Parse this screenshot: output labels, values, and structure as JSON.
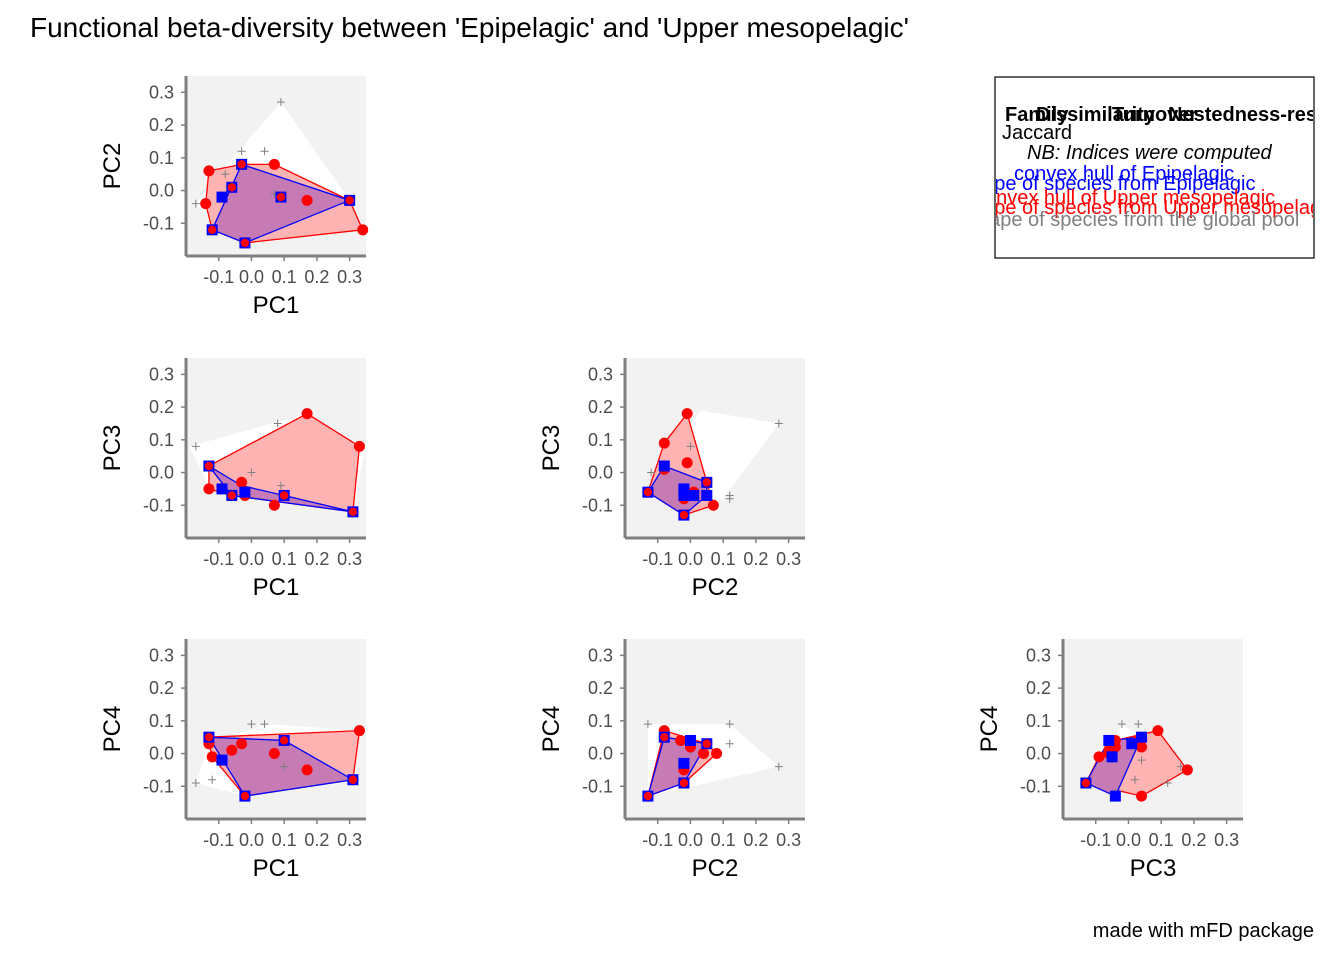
{
  "title": "Functional beta-diversity between 'Epipelagic' and 'Upper mesopelagic'",
  "caption": "made with mFD package",
  "colors": {
    "panel_bg": "#f2f2f2",
    "pool_hull": "#ffffff",
    "pool_points": "#808080",
    "epi": "#0000ff",
    "meso": "#ff0000",
    "meso_fill": "#ffb3b3",
    "overlap_fill": "#c67bb5",
    "axis": "#7f7f7f"
  },
  "legend": {
    "header": [
      "Family",
      "Dissimilarity",
      "Turnover",
      "Nestedness-resultant"
    ],
    "family": "Jaccard",
    "note": "NB: Indices were computed",
    "epi_hull": "convex hull of Epipelagic",
    "epi_species": "shape of species from Epipelagic",
    "meso_hull": "convex hull of Upper mesopelagic",
    "meso_species": "shape of species from Upper mesopelagic",
    "pool_species": "shape of species from the global pool"
  },
  "chart_data": {
    "type": "scatter",
    "axis_range": [
      -0.2,
      0.35
    ],
    "ticks": [
      -0.1,
      0.0,
      0.1,
      0.2,
      0.3
    ],
    "tick_labels": [
      "-0.1",
      "0.0",
      "0.1",
      "0.2",
      "0.3"
    ],
    "x_tick_labels": [
      "-0.1",
      "0.0",
      "0.1",
      "0.2",
      "0.3"
    ],
    "grid": false,
    "panels": [
      {
        "xlabel": "PC1",
        "ylabel": "PC2",
        "pool_hull": [
          [
            -0.17,
            -0.04
          ],
          [
            -0.1,
            -0.12
          ],
          [
            -0.02,
            -0.16
          ],
          [
            0.3,
            -0.03
          ],
          [
            0.09,
            0.27
          ],
          [
            -0.04,
            0.12
          ]
        ],
        "pool_points": [
          [
            0.09,
            0.27
          ],
          [
            -0.03,
            0.12
          ],
          [
            0.04,
            0.12
          ],
          [
            -0.17,
            -0.04
          ],
          [
            -0.08,
            0.05
          ],
          [
            0.07,
            -0.01
          ]
        ],
        "meso_hull": [
          [
            -0.13,
            0.06
          ],
          [
            -0.14,
            -0.04
          ],
          [
            -0.12,
            -0.12
          ],
          [
            -0.02,
            -0.16
          ],
          [
            0.34,
            -0.12
          ],
          [
            0.3,
            -0.03
          ],
          [
            0.07,
            0.08
          ],
          [
            -0.03,
            0.08
          ]
        ],
        "meso_points": [
          [
            -0.13,
            0.06
          ],
          [
            -0.14,
            -0.04
          ],
          [
            -0.12,
            -0.12
          ],
          [
            -0.02,
            -0.16
          ],
          [
            0.34,
            -0.12
          ],
          [
            0.3,
            -0.03
          ],
          [
            0.07,
            0.08
          ],
          [
            -0.03,
            0.08
          ],
          [
            0.17,
            -0.03
          ],
          [
            0.09,
            -0.02
          ],
          [
            -0.06,
            0.01
          ]
        ],
        "epi_hull": [
          [
            -0.12,
            -0.12
          ],
          [
            -0.03,
            0.08
          ],
          [
            0.3,
            -0.03
          ],
          [
            -0.02,
            -0.16
          ]
        ],
        "epi_points": [
          [
            -0.12,
            -0.12
          ],
          [
            -0.03,
            0.08
          ],
          [
            0.3,
            -0.03
          ],
          [
            -0.02,
            -0.16
          ],
          [
            -0.09,
            -0.02
          ],
          [
            0.09,
            -0.02
          ],
          [
            -0.06,
            0.01
          ]
        ]
      },
      {
        "xlabel": "PC1",
        "ylabel": "PC3",
        "pool_hull": [
          [
            -0.19,
            0.08
          ],
          [
            -0.13,
            -0.04
          ],
          [
            0.31,
            -0.12
          ],
          [
            0.35,
            0.08
          ],
          [
            0.17,
            0.18
          ]
        ],
        "pool_points": [
          [
            -0.17,
            0.08
          ],
          [
            0.08,
            0.15
          ],
          [
            0.0,
            0.0
          ],
          [
            0.09,
            -0.04
          ]
        ],
        "meso_hull": [
          [
            -0.13,
            0.02
          ],
          [
            -0.13,
            -0.05
          ],
          [
            -0.06,
            -0.07
          ],
          [
            0.31,
            -0.12
          ],
          [
            0.33,
            0.08
          ],
          [
            0.17,
            0.18
          ]
        ],
        "meso_points": [
          [
            -0.13,
            0.02
          ],
          [
            -0.13,
            -0.05
          ],
          [
            -0.06,
            -0.07
          ],
          [
            0.31,
            -0.12
          ],
          [
            0.33,
            0.08
          ],
          [
            0.17,
            0.18
          ],
          [
            -0.03,
            -0.03
          ],
          [
            -0.02,
            -0.07
          ],
          [
            0.07,
            -0.1
          ],
          [
            0.1,
            -0.07
          ]
        ],
        "epi_hull": [
          [
            -0.13,
            0.02
          ],
          [
            -0.06,
            -0.07
          ],
          [
            0.31,
            -0.12
          ],
          [
            0.1,
            -0.07
          ],
          [
            -0.03,
            -0.04
          ]
        ],
        "epi_points": [
          [
            -0.13,
            0.02
          ],
          [
            -0.06,
            -0.07
          ],
          [
            0.31,
            -0.12
          ],
          [
            0.1,
            -0.07
          ],
          [
            -0.09,
            -0.05
          ],
          [
            -0.02,
            -0.06
          ]
        ]
      },
      {
        "xlabel": "PC2",
        "ylabel": "PC3",
        "pool_hull": [
          [
            -0.13,
            -0.06
          ],
          [
            -0.02,
            -0.13
          ],
          [
            0.1,
            -0.08
          ],
          [
            0.27,
            0.15
          ],
          [
            0.03,
            0.19
          ]
        ],
        "pool_points": [
          [
            0.27,
            0.15
          ],
          [
            0.0,
            0.08
          ],
          [
            0.12,
            -0.07
          ],
          [
            0.12,
            -0.08
          ],
          [
            -0.12,
            0.0
          ],
          [
            -0.02,
            -0.05
          ]
        ],
        "meso_hull": [
          [
            -0.13,
            -0.06
          ],
          [
            -0.02,
            -0.13
          ],
          [
            0.07,
            -0.1
          ],
          [
            0.05,
            -0.03
          ],
          [
            -0.01,
            0.18
          ],
          [
            -0.08,
            0.09
          ]
        ],
        "meso_points": [
          [
            -0.13,
            -0.06
          ],
          [
            -0.02,
            -0.13
          ],
          [
            0.07,
            -0.1
          ],
          [
            0.05,
            -0.03
          ],
          [
            -0.01,
            0.18
          ],
          [
            -0.08,
            0.09
          ],
          [
            -0.08,
            0.01
          ],
          [
            -0.01,
            0.03
          ],
          [
            0.01,
            -0.06
          ],
          [
            -0.02,
            -0.08
          ]
        ],
        "epi_hull": [
          [
            -0.13,
            -0.06
          ],
          [
            -0.02,
            -0.13
          ],
          [
            0.05,
            -0.07
          ],
          [
            0.05,
            -0.03
          ],
          [
            -0.08,
            0.02
          ]
        ],
        "epi_points": [
          [
            -0.13,
            -0.06
          ],
          [
            -0.02,
            -0.13
          ],
          [
            0.05,
            -0.07
          ],
          [
            0.05,
            -0.03
          ],
          [
            -0.08,
            0.02
          ],
          [
            -0.02,
            -0.05
          ],
          [
            -0.02,
            -0.07
          ],
          [
            0.01,
            -0.07
          ]
        ]
      },
      {
        "xlabel": "PC1",
        "ylabel": "PC4",
        "pool_hull": [
          [
            -0.13,
            0.03
          ],
          [
            -0.17,
            -0.09
          ],
          [
            -0.02,
            -0.13
          ],
          [
            0.31,
            -0.08
          ],
          [
            0.33,
            0.07
          ],
          [
            0.05,
            0.09
          ]
        ],
        "pool_points": [
          [
            -0.17,
            -0.09
          ],
          [
            -0.12,
            -0.08
          ],
          [
            0.0,
            0.09
          ],
          [
            0.04,
            0.09
          ],
          [
            0.1,
            -0.04
          ]
        ],
        "meso_hull": [
          [
            -0.13,
            0.05
          ],
          [
            -0.13,
            0.03
          ],
          [
            -0.12,
            -0.01
          ],
          [
            -0.02,
            -0.13
          ],
          [
            0.31,
            -0.08
          ],
          [
            0.33,
            0.07
          ]
        ],
        "meso_points": [
          [
            -0.13,
            0.05
          ],
          [
            -0.13,
            0.03
          ],
          [
            -0.12,
            -0.01
          ],
          [
            -0.02,
            -0.13
          ],
          [
            0.31,
            -0.08
          ],
          [
            0.33,
            0.07
          ],
          [
            -0.03,
            0.03
          ],
          [
            -0.06,
            0.01
          ],
          [
            0.07,
            0.0
          ],
          [
            0.17,
            -0.05
          ],
          [
            0.1,
            0.04
          ]
        ],
        "epi_hull": [
          [
            -0.13,
            0.05
          ],
          [
            -0.02,
            -0.13
          ],
          [
            0.31,
            -0.08
          ],
          [
            0.1,
            0.04
          ]
        ],
        "epi_points": [
          [
            -0.13,
            0.05
          ],
          [
            -0.02,
            -0.13
          ],
          [
            0.31,
            -0.08
          ],
          [
            0.1,
            0.04
          ],
          [
            -0.09,
            -0.02
          ]
        ]
      },
      {
        "xlabel": "PC2",
        "ylabel": "PC4",
        "pool_hull": [
          [
            -0.13,
            0.09
          ],
          [
            -0.13,
            -0.13
          ],
          [
            0.27,
            -0.04
          ],
          [
            0.12,
            0.09
          ]
        ],
        "pool_points": [
          [
            -0.13,
            0.09
          ],
          [
            0.12,
            0.09
          ],
          [
            0.12,
            0.03
          ],
          [
            0.27,
            -0.04
          ],
          [
            0.0,
            0.01
          ]
        ],
        "meso_hull": [
          [
            -0.13,
            -0.13
          ],
          [
            -0.08,
            0.07
          ],
          [
            0.05,
            0.03
          ],
          [
            0.08,
            0.0
          ],
          [
            -0.02,
            -0.09
          ]
        ],
        "meso_points": [
          [
            -0.13,
            -0.13
          ],
          [
            -0.08,
            0.07
          ],
          [
            0.05,
            0.03
          ],
          [
            0.08,
            0.0
          ],
          [
            -0.02,
            -0.09
          ],
          [
            -0.08,
            0.05
          ],
          [
            -0.03,
            0.04
          ],
          [
            -0.02,
            -0.05
          ],
          [
            0.04,
            0.0
          ],
          [
            0.0,
            0.02
          ]
        ],
        "epi_hull": [
          [
            -0.13,
            -0.13
          ],
          [
            -0.08,
            0.05
          ],
          [
            0.05,
            0.03
          ],
          [
            -0.02,
            -0.09
          ]
        ],
        "epi_points": [
          [
            -0.13,
            -0.13
          ],
          [
            -0.08,
            0.05
          ],
          [
            0.05,
            0.03
          ],
          [
            -0.02,
            -0.09
          ],
          [
            -0.02,
            -0.03
          ],
          [
            0.0,
            0.04
          ]
        ]
      },
      {
        "xlabel": "PC3",
        "ylabel": "PC4",
        "pool_hull": [
          [
            -0.13,
            -0.09
          ],
          [
            -0.02,
            0.09
          ],
          [
            0.16,
            -0.04
          ],
          [
            0.05,
            -0.13
          ]
        ],
        "pool_points": [
          [
            -0.02,
            0.09
          ],
          [
            0.03,
            0.09
          ],
          [
            0.12,
            -0.09
          ],
          [
            0.02,
            -0.08
          ],
          [
            0.04,
            -0.02
          ],
          [
            0.16,
            -0.04
          ]
        ],
        "meso_hull": [
          [
            -0.13,
            -0.09
          ],
          [
            -0.09,
            -0.01
          ],
          [
            -0.04,
            0.04
          ],
          [
            0.09,
            0.07
          ],
          [
            0.18,
            -0.05
          ],
          [
            0.04,
            -0.13
          ]
        ],
        "meso_points": [
          [
            -0.13,
            -0.09
          ],
          [
            -0.09,
            -0.01
          ],
          [
            -0.04,
            0.04
          ],
          [
            0.09,
            0.07
          ],
          [
            0.18,
            -0.05
          ],
          [
            0.04,
            -0.13
          ],
          [
            -0.06,
            0.0
          ],
          [
            -0.06,
            0.01
          ],
          [
            -0.04,
            0.02
          ],
          [
            0.03,
            0.04
          ],
          [
            0.04,
            0.02
          ]
        ],
        "epi_hull": [
          [
            -0.13,
            -0.09
          ],
          [
            -0.06,
            0.04
          ],
          [
            0.04,
            0.05
          ],
          [
            -0.04,
            -0.13
          ]
        ],
        "epi_points": [
          [
            -0.13,
            -0.09
          ],
          [
            -0.06,
            0.04
          ],
          [
            0.04,
            0.05
          ],
          [
            -0.04,
            -0.13
          ],
          [
            -0.05,
            -0.01
          ],
          [
            0.01,
            0.03
          ]
        ]
      }
    ]
  }
}
